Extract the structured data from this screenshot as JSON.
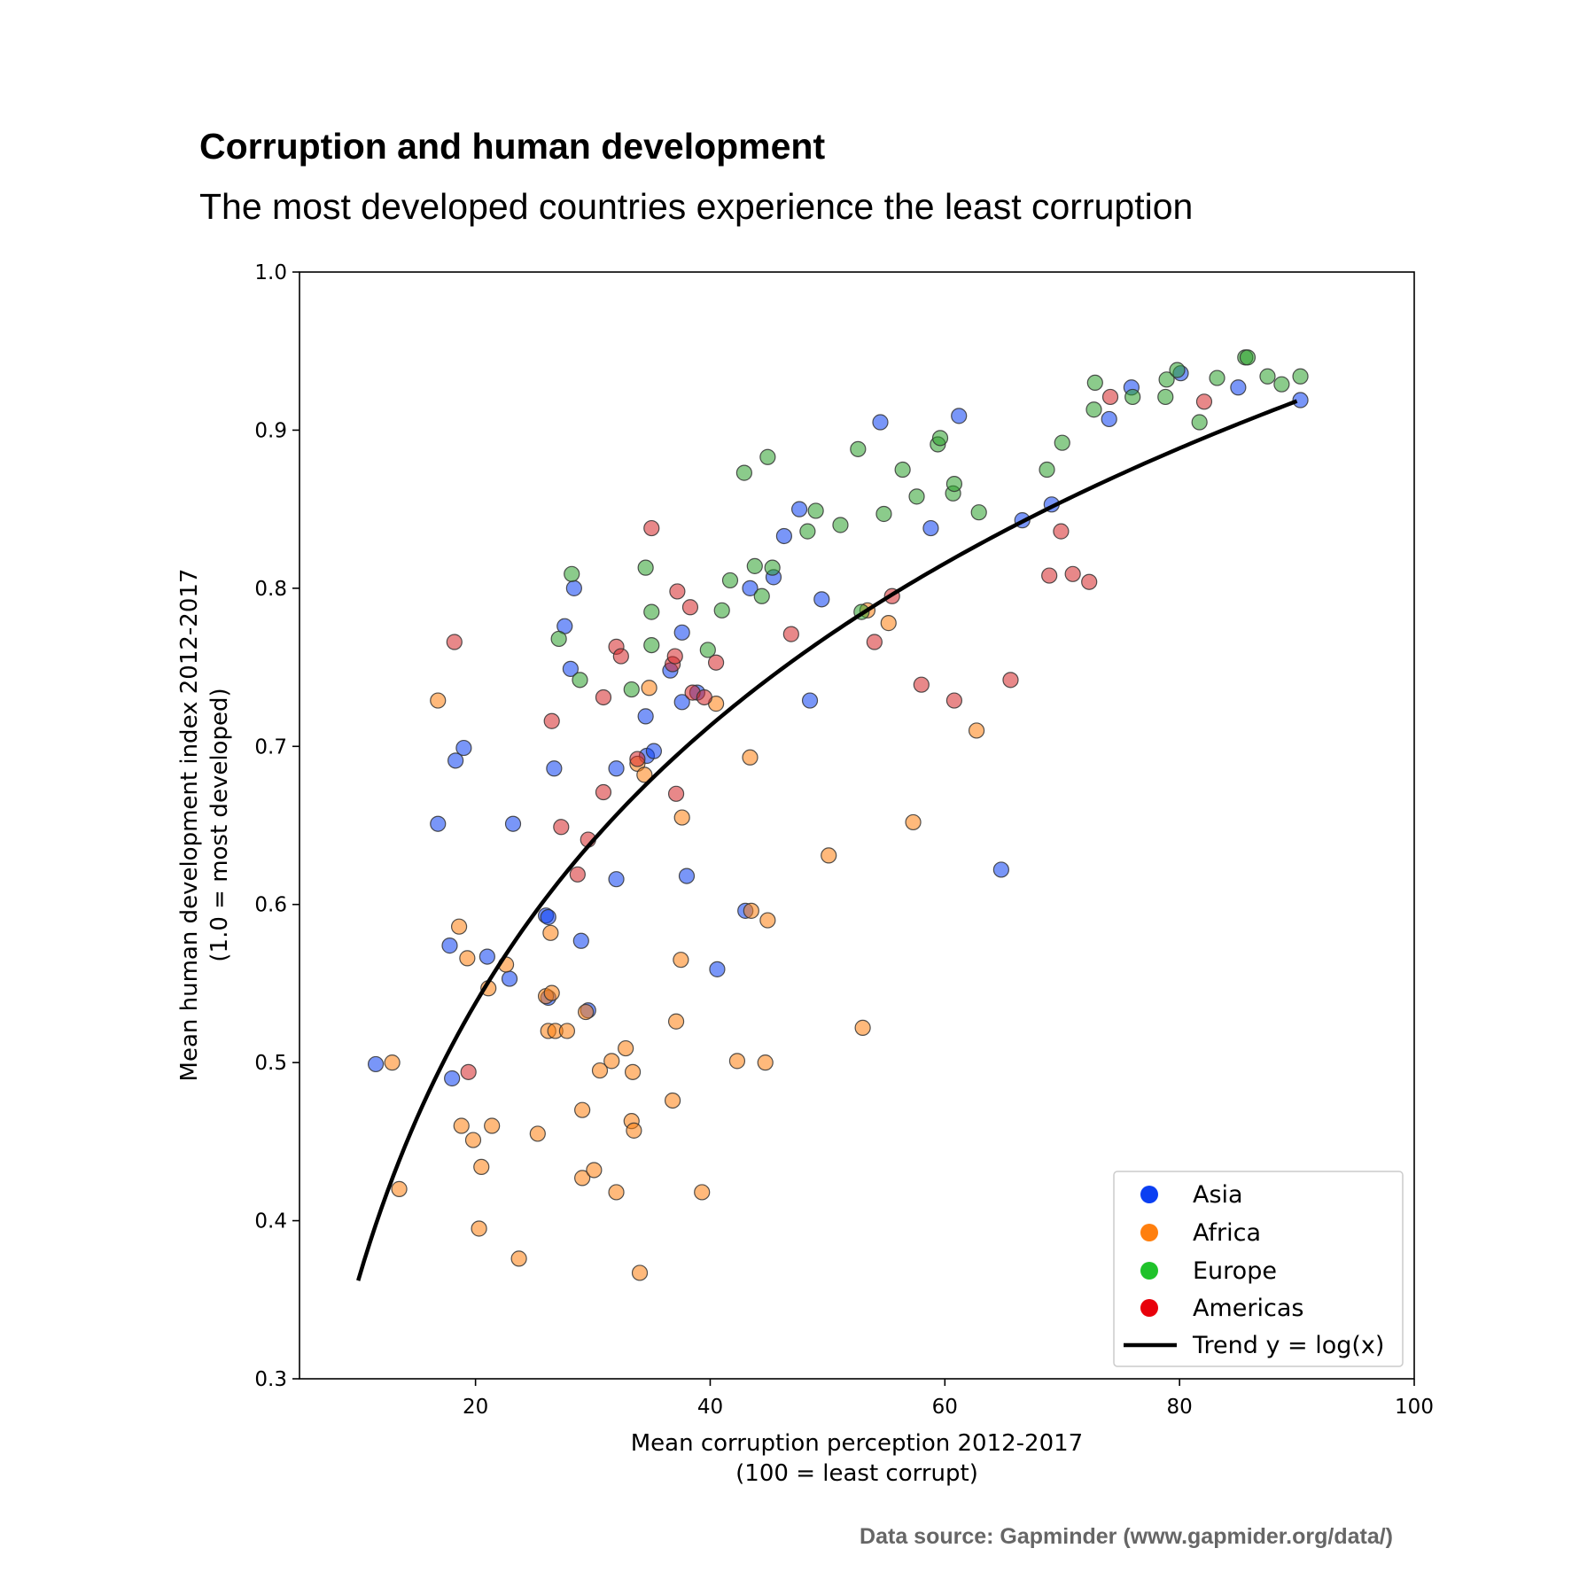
{
  "chart_data": {
    "type": "scatter",
    "title": "Corruption and human development",
    "subtitle": "The most developed countries experience the least corruption",
    "xlabel": [
      "Mean corruption perception 2012-2017",
      "(100 = least corrupt)"
    ],
    "ylabel": [
      "Mean human development index 2012-2017",
      "(1.0 = most developed)"
    ],
    "xlim": [
      5,
      100
    ],
    "ylim": [
      0.3,
      1.0
    ],
    "xticks": [
      20,
      40,
      60,
      80,
      100
    ],
    "yticks": [
      0.3,
      0.4,
      0.5,
      0.6,
      0.7,
      0.8,
      0.9,
      1.0
    ],
    "grid": false,
    "legend_position": "bottom-right",
    "source": "Data source: Gapminder (www.gapmider.org/data/)",
    "series": [
      {
        "name": "Asia",
        "color": "#0b3ff2",
        "points": [
          [
            11.5,
            0.499
          ],
          [
            16.8,
            0.651
          ],
          [
            17.8,
            0.574
          ],
          [
            18,
            0.49
          ],
          [
            18.3,
            0.691
          ],
          [
            19,
            0.699
          ],
          [
            21,
            0.567
          ],
          [
            22.9,
            0.553
          ],
          [
            23.2,
            0.651
          ],
          [
            26,
            0.593
          ],
          [
            26.2,
            0.592
          ],
          [
            26.2,
            0.541
          ],
          [
            26.7,
            0.686
          ],
          [
            27.6,
            0.776
          ],
          [
            28.1,
            0.749
          ],
          [
            28.4,
            0.8
          ],
          [
            29,
            0.577
          ],
          [
            29.6,
            0.533
          ],
          [
            32,
            0.686
          ],
          [
            32,
            0.616
          ],
          [
            34.5,
            0.719
          ],
          [
            34.6,
            0.694
          ],
          [
            35.2,
            0.697
          ],
          [
            36.6,
            0.748
          ],
          [
            37.6,
            0.772
          ],
          [
            37.6,
            0.728
          ],
          [
            38,
            0.618
          ],
          [
            38.9,
            0.734
          ],
          [
            40.6,
            0.559
          ],
          [
            43,
            0.596
          ],
          [
            43.4,
            0.8
          ],
          [
            45.4,
            0.807
          ],
          [
            46.3,
            0.833
          ],
          [
            47.6,
            0.85
          ],
          [
            48.5,
            0.729
          ],
          [
            49.5,
            0.793
          ],
          [
            54.5,
            0.905
          ],
          [
            58.8,
            0.838
          ],
          [
            61.2,
            0.909
          ],
          [
            64.8,
            0.622
          ],
          [
            66.6,
            0.843
          ],
          [
            69.1,
            0.853
          ],
          [
            74,
            0.907
          ],
          [
            75.9,
            0.927
          ],
          [
            80.1,
            0.936
          ],
          [
            85,
            0.927
          ],
          [
            90.3,
            0.919
          ]
        ]
      },
      {
        "name": "Africa",
        "color": "#ff7f0e",
        "points": [
          [
            12.9,
            0.5
          ],
          [
            13.5,
            0.42
          ],
          [
            16.8,
            0.729
          ],
          [
            18.6,
            0.586
          ],
          [
            18.8,
            0.46
          ],
          [
            19.3,
            0.566
          ],
          [
            19.8,
            0.451
          ],
          [
            20.3,
            0.395
          ],
          [
            20.5,
            0.434
          ],
          [
            21.1,
            0.547
          ],
          [
            21.4,
            0.46
          ],
          [
            22.6,
            0.562
          ],
          [
            23.7,
            0.376
          ],
          [
            25.3,
            0.455
          ],
          [
            26,
            0.542
          ],
          [
            26.2,
            0.52
          ],
          [
            26.4,
            0.582
          ],
          [
            26.5,
            0.544
          ],
          [
            26.8,
            0.52
          ],
          [
            27.8,
            0.52
          ],
          [
            29.1,
            0.427
          ],
          [
            29.1,
            0.47
          ],
          [
            29.4,
            0.532
          ],
          [
            30.1,
            0.432
          ],
          [
            30.6,
            0.495
          ],
          [
            31.6,
            0.501
          ],
          [
            32,
            0.418
          ],
          [
            32.8,
            0.509
          ],
          [
            33.3,
            0.463
          ],
          [
            33.4,
            0.494
          ],
          [
            33.5,
            0.457
          ],
          [
            33.8,
            0.689
          ],
          [
            34,
            0.367
          ],
          [
            34.4,
            0.682
          ],
          [
            34.8,
            0.737
          ],
          [
            36.8,
            0.476
          ],
          [
            37.1,
            0.526
          ],
          [
            37.5,
            0.565
          ],
          [
            37.6,
            0.655
          ],
          [
            39.3,
            0.418
          ],
          [
            40.5,
            0.727
          ],
          [
            42.3,
            0.501
          ],
          [
            43.4,
            0.693
          ],
          [
            43.5,
            0.596
          ],
          [
            44.7,
            0.5
          ],
          [
            44.9,
            0.59
          ],
          [
            50.1,
            0.631
          ],
          [
            53,
            0.522
          ],
          [
            53.4,
            0.786
          ],
          [
            55.2,
            0.778
          ],
          [
            57.3,
            0.652
          ],
          [
            62.7,
            0.71
          ]
        ]
      },
      {
        "name": "Europe",
        "color": "#2ca02c",
        "points": [
          [
            27.1,
            0.768
          ],
          [
            28.2,
            0.809
          ],
          [
            28.9,
            0.742
          ],
          [
            33.3,
            0.736
          ],
          [
            34.5,
            0.813
          ],
          [
            35,
            0.785
          ],
          [
            35,
            0.764
          ],
          [
            39.8,
            0.761
          ],
          [
            41,
            0.786
          ],
          [
            41.7,
            0.805
          ],
          [
            42.9,
            0.873
          ],
          [
            43.8,
            0.814
          ],
          [
            44.4,
            0.795
          ],
          [
            44.9,
            0.883
          ],
          [
            45.3,
            0.813
          ],
          [
            48.3,
            0.836
          ],
          [
            49,
            0.849
          ],
          [
            51.1,
            0.84
          ],
          [
            52.6,
            0.888
          ],
          [
            52.9,
            0.785
          ],
          [
            54.8,
            0.847
          ],
          [
            56.4,
            0.875
          ],
          [
            57.6,
            0.858
          ],
          [
            59.4,
            0.891
          ],
          [
            59.6,
            0.895
          ],
          [
            60.7,
            0.86
          ],
          [
            60.8,
            0.866
          ],
          [
            62.9,
            0.848
          ],
          [
            68.7,
            0.875
          ],
          [
            70,
            0.892
          ],
          [
            72.7,
            0.913
          ],
          [
            72.8,
            0.93
          ],
          [
            76,
            0.921
          ],
          [
            78.8,
            0.921
          ],
          [
            78.9,
            0.932
          ],
          [
            79.8,
            0.938
          ],
          [
            81.7,
            0.905
          ],
          [
            83.2,
            0.933
          ],
          [
            85.6,
            0.946
          ],
          [
            85.8,
            0.946
          ],
          [
            87.5,
            0.934
          ],
          [
            88.7,
            0.929
          ],
          [
            90.3,
            0.934
          ]
        ]
      },
      {
        "name": "Americas",
        "color": "#d62728",
        "points": [
          [
            18.2,
            0.766
          ],
          [
            19.4,
            0.494
          ],
          [
            26.5,
            0.716
          ],
          [
            27.3,
            0.649
          ],
          [
            28.7,
            0.619
          ],
          [
            29.6,
            0.641
          ],
          [
            30.9,
            0.671
          ],
          [
            30.9,
            0.731
          ],
          [
            32,
            0.763
          ],
          [
            32.4,
            0.757
          ],
          [
            33.8,
            0.692
          ],
          [
            35,
            0.838
          ],
          [
            36.8,
            0.752
          ],
          [
            37,
            0.757
          ],
          [
            37.1,
            0.67
          ],
          [
            37.2,
            0.798
          ],
          [
            38.3,
            0.788
          ],
          [
            38.5,
            0.734
          ],
          [
            39.5,
            0.731
          ],
          [
            40.5,
            0.753
          ],
          [
            46.9,
            0.771
          ],
          [
            54,
            0.766
          ],
          [
            55.5,
            0.795
          ],
          [
            58,
            0.739
          ],
          [
            60.8,
            0.729
          ],
          [
            65.6,
            0.742
          ],
          [
            68.9,
            0.808
          ],
          [
            69.9,
            0.836
          ],
          [
            70.9,
            0.809
          ],
          [
            72.3,
            0.804
          ],
          [
            74.1,
            0.921
          ],
          [
            82.1,
            0.918
          ]
        ]
      }
    ],
    "trend": {
      "name": "Trend y = log(x)",
      "color": "#000000",
      "x_start": 10,
      "x_end": 90,
      "points": [
        [
          10,
          0.362
        ],
        [
          20,
          0.538
        ],
        [
          30,
          0.64
        ],
        [
          40,
          0.712
        ],
        [
          50,
          0.768
        ],
        [
          60,
          0.818
        ],
        [
          70,
          0.857
        ],
        [
          80,
          0.89
        ],
        [
          90,
          0.915
        ]
      ]
    }
  }
}
